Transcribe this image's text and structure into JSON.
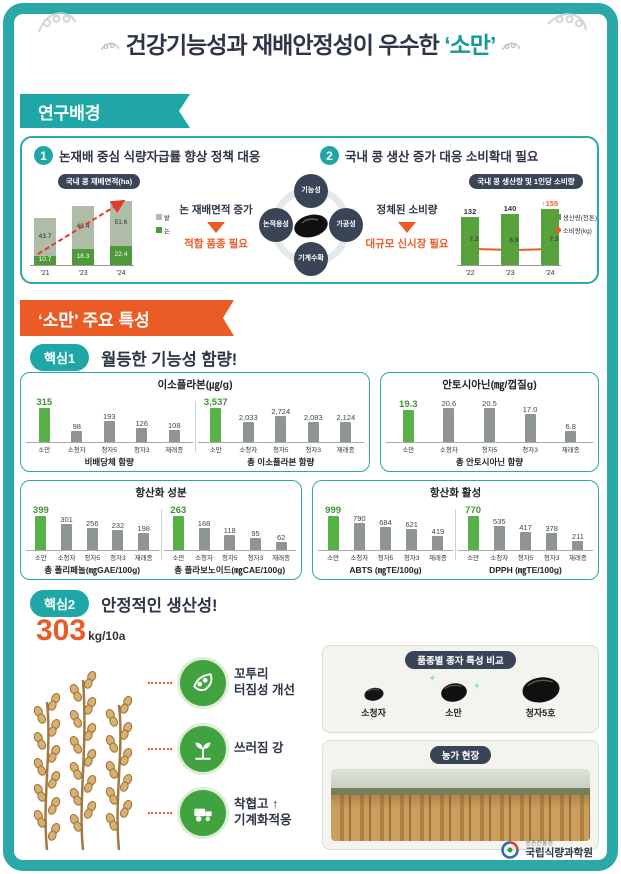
{
  "colors": {
    "teal": "#1FA6A6",
    "orange": "#EB5B25",
    "green_bar": "#56B146",
    "gray_bar": "#8F9494",
    "dark": "#2E3547",
    "paddy_green": "#4E9A3A",
    "field_gray": "#AEBCA8"
  },
  "header": {
    "title_prefix": "건강기능성과 재배안정성이 우수한 ",
    "title_highlight": "‘소만’"
  },
  "research": {
    "ribbon": "연구배경",
    "point1": {
      "num": "1",
      "title": "논재배 중심 식량자급률 향상 정책 대응"
    },
    "point2": {
      "num": "2",
      "title": "국내 콩 생산 증가 대응 소비확대 필요"
    },
    "flow1": {
      "cause": "논 재배면적 증가",
      "effect": "적합 품종 필요"
    },
    "flow2": {
      "cause": "정체된 소비량",
      "effect": "대규모 신시장 필요"
    },
    "diagram": {
      "top": "기능성",
      "right": "가공성",
      "bottom": "기계수확",
      "left": "논적응성"
    }
  },
  "features": {
    "ribbon": "‘소만’ 주요 특성",
    "core1": {
      "badge": "핵심1",
      "title": "월등한 기능성 함량!"
    },
    "core2": {
      "badge": "핵심2",
      "title": "안정적인 생산성!"
    },
    "yield": {
      "value": "303",
      "unit": "kg/10a"
    },
    "traits": [
      {
        "label": "꼬투리\n터짐성 개선"
      },
      {
        "label": "쓰러짐 강"
      },
      {
        "label": "착협고 ↑\n기계화적응"
      }
    ],
    "seed_box": {
      "title": "품종별 종자 특성 비교",
      "seeds": [
        {
          "name": "소청자"
        },
        {
          "name": "소만"
        },
        {
          "name": "청자5호"
        }
      ]
    },
    "farm_box": {
      "title": "농가 현장"
    }
  },
  "footer": {
    "org_small": "농촌진흥청",
    "org": "국립식량과학원"
  },
  "chart_data": [
    {
      "id": "soybean-area",
      "type": "bar",
      "stacked": true,
      "title": "국내 콩 재배면적(ha)",
      "categories": [
        "’21",
        "’23",
        "’24"
      ],
      "series": [
        {
          "name": "밭",
          "values": [
            43.7,
            49.4,
            51.6
          ]
        },
        {
          "name": "논",
          "values": [
            10.7,
            18.3,
            22.4
          ]
        }
      ],
      "legend_position": "right"
    },
    {
      "id": "soybean-production",
      "type": "bar+line",
      "title": "국내 콩 생산량 및 1인당 소비량",
      "categories": [
        "’22",
        "’23",
        "’24"
      ],
      "series": [
        {
          "name": "생산량(천톤)",
          "chart": "bar",
          "values": [
            132,
            140,
            155
          ]
        },
        {
          "name": "소비량(kg)",
          "chart": "line",
          "values": [
            7.3,
            6.9,
            7.3
          ]
        }
      ],
      "highlight_index": 2,
      "highlight_arrow": "↑",
      "legend_position": "right"
    },
    {
      "id": "isoflavone",
      "type": "bar",
      "title": "이소플라본(㎍/g)",
      "categories": [
        "소만",
        "소청자",
        "청자5",
        "청자3",
        "재래종"
      ],
      "groups": [
        {
          "label": "비배당체 함량",
          "values": [
            315,
            98,
            193,
            126,
            108
          ],
          "display": [
            "315",
            "98",
            "193",
            "126",
            "108"
          ]
        },
        {
          "label": "총 이소플라본 함량",
          "values": [
            3537,
            2033,
            2724,
            2083,
            2124
          ],
          "display": [
            "3,537",
            "2,033",
            "2,724",
            "2,083",
            "2,124"
          ]
        }
      ]
    },
    {
      "id": "anthocyanin",
      "type": "bar",
      "title": "안토시아닌(㎎/껍질g)",
      "categories": [
        "소만",
        "소청자",
        "청자5",
        "청자3",
        "재래종"
      ],
      "groups": [
        {
          "label": "총 안토시아닌 함량",
          "values": [
            19.3,
            20.6,
            20.5,
            17.0,
            6.8
          ],
          "display": [
            "19.3",
            "20.6",
            "20.5",
            "17.0",
            "6.8"
          ]
        }
      ]
    },
    {
      "id": "antioxidant-components",
      "type": "bar",
      "title": "항산화 성분",
      "categories": [
        "소만",
        "소청자",
        "청자5",
        "청자3",
        "재래종"
      ],
      "groups": [
        {
          "label": "총 폴리페놀(㎎GAE/100g)",
          "values": [
            399,
            301,
            256,
            232,
            198
          ]
        },
        {
          "label": "총 플라보노이드(㎎CAE/100g)",
          "values": [
            263,
            168,
            118,
            95,
            62
          ]
        }
      ]
    },
    {
      "id": "antioxidant-activity",
      "type": "bar",
      "title": "항산화 활성",
      "categories": [
        "소만",
        "소청자",
        "청자5",
        "청자3",
        "재래종"
      ],
      "groups": [
        {
          "label": "ABTS (㎎TE/100g)",
          "values": [
            999,
            790,
            684,
            621,
            419
          ]
        },
        {
          "label": "DPPH (㎎TE/100g)",
          "values": [
            770,
            535,
            417,
            378,
            211
          ]
        }
      ]
    }
  ]
}
